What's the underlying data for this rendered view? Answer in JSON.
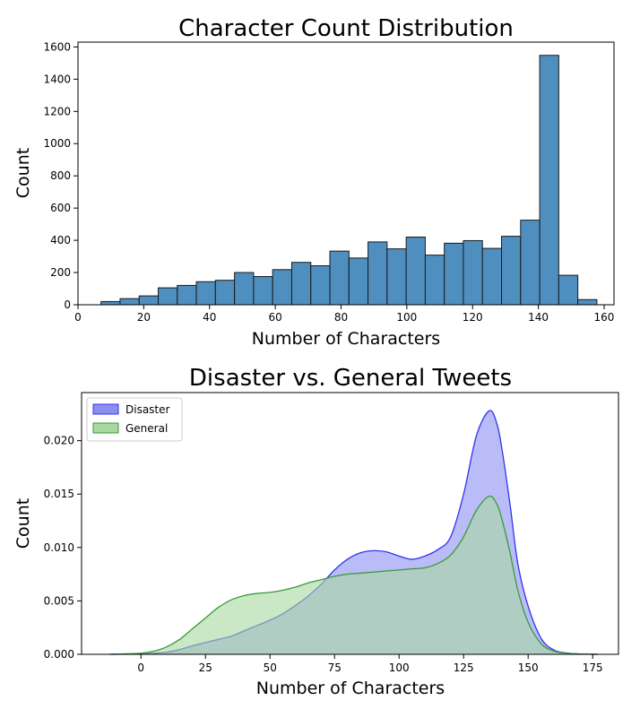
{
  "chart_data": [
    {
      "type": "bar",
      "title": "Character Count Distribution",
      "xlabel": "Number of Characters",
      "ylabel": "Count",
      "xlim": [
        0,
        163
      ],
      "ylim": [
        0,
        1630
      ],
      "xticks": [
        "0",
        "20",
        "40",
        "60",
        "80",
        "100",
        "120",
        "140",
        "160"
      ],
      "yticks": [
        "0",
        "200",
        "400",
        "600",
        "800",
        "1000",
        "1200",
        "1400",
        "1600"
      ],
      "bar_color": "#4f8fc0",
      "edge_color": "#1a1a1a",
      "bins": [
        {
          "x0": 7.0,
          "x1": 12.8,
          "value": 20
        },
        {
          "x0": 12.8,
          "x1": 18.6,
          "value": 38
        },
        {
          "x0": 18.6,
          "x1": 24.4,
          "value": 55
        },
        {
          "x0": 24.4,
          "x1": 30.2,
          "value": 105
        },
        {
          "x0": 30.2,
          "x1": 36.0,
          "value": 120
        },
        {
          "x0": 36.0,
          "x1": 41.8,
          "value": 143
        },
        {
          "x0": 41.8,
          "x1": 47.6,
          "value": 152
        },
        {
          "x0": 47.6,
          "x1": 53.4,
          "value": 200
        },
        {
          "x0": 53.4,
          "x1": 59.2,
          "value": 175
        },
        {
          "x0": 59.2,
          "x1": 65.0,
          "value": 218
        },
        {
          "x0": 65.0,
          "x1": 70.8,
          "value": 263
        },
        {
          "x0": 70.8,
          "x1": 76.6,
          "value": 242
        },
        {
          "x0": 76.6,
          "x1": 82.4,
          "value": 333
        },
        {
          "x0": 82.4,
          "x1": 88.2,
          "value": 290
        },
        {
          "x0": 88.2,
          "x1": 94.0,
          "value": 390
        },
        {
          "x0": 94.0,
          "x1": 99.8,
          "value": 347
        },
        {
          "x0": 99.8,
          "x1": 105.6,
          "value": 420
        },
        {
          "x0": 105.6,
          "x1": 111.4,
          "value": 308
        },
        {
          "x0": 111.4,
          "x1": 117.2,
          "value": 382
        },
        {
          "x0": 117.2,
          "x1": 123.0,
          "value": 398
        },
        {
          "x0": 123.0,
          "x1": 128.8,
          "value": 350
        },
        {
          "x0": 128.8,
          "x1": 134.6,
          "value": 425
        },
        {
          "x0": 134.6,
          "x1": 140.4,
          "value": 525
        },
        {
          "x0": 140.4,
          "x1": 146.2,
          "value": 1548
        },
        {
          "x0": 146.2,
          "x1": 152.0,
          "value": 183
        },
        {
          "x0": 152.0,
          "x1": 157.8,
          "value": 32
        }
      ]
    },
    {
      "type": "area",
      "title": "Disaster vs. General Tweets",
      "xlabel": "Number of Characters",
      "ylabel": "Count",
      "xlim": [
        -23,
        185
      ],
      "ylim": [
        0,
        0.0245
      ],
      "xticks": [
        "0",
        "25",
        "50",
        "75",
        "100",
        "125",
        "150",
        "175"
      ],
      "yticks": [
        "0.000",
        "0.005",
        "0.010",
        "0.015",
        "0.020"
      ],
      "legend_position": "upper-left",
      "x": [
        -12,
        -5,
        0,
        5,
        10,
        15,
        20,
        25,
        30,
        35,
        40,
        45,
        50,
        55,
        60,
        65,
        70,
        75,
        80,
        85,
        90,
        95,
        100,
        105,
        110,
        115,
        120,
        125,
        130,
        135,
        138,
        140,
        143,
        146,
        150,
        155,
        160,
        165,
        170,
        177
      ],
      "series": [
        {
          "name": "Disaster",
          "line_color": "#3333ee",
          "fill_color": "#8a8ff0",
          "values": [
            0,
            2e-05,
            5e-05,
            0.0001,
            0.0002,
            0.00045,
            0.0008,
            0.0011,
            0.0014,
            0.0017,
            0.0022,
            0.0027,
            0.0032,
            0.0038,
            0.0046,
            0.0055,
            0.0066,
            0.0079,
            0.0089,
            0.0095,
            0.0097,
            0.0096,
            0.0092,
            0.0089,
            0.0092,
            0.0098,
            0.011,
            0.015,
            0.0205,
            0.0228,
            0.0215,
            0.019,
            0.014,
            0.0085,
            0.0045,
            0.0015,
            0.0004,
            0.00012,
            3e-05,
            0
          ]
        },
        {
          "name": "General",
          "line_color": "#3a9a3a",
          "fill_color": "#a8d8a0",
          "values": [
            0,
            5e-05,
            0.0001,
            0.0003,
            0.0007,
            0.0014,
            0.0024,
            0.0034,
            0.0044,
            0.0051,
            0.0055,
            0.0057,
            0.0058,
            0.006,
            0.0063,
            0.0067,
            0.007,
            0.0073,
            0.0075,
            0.0076,
            0.0077,
            0.0078,
            0.0079,
            0.008,
            0.0081,
            0.0085,
            0.0093,
            0.011,
            0.0135,
            0.0148,
            0.014,
            0.0125,
            0.0095,
            0.006,
            0.003,
            0.001,
            0.0003,
            0.0001,
            3e-05,
            0
          ]
        }
      ]
    }
  ]
}
